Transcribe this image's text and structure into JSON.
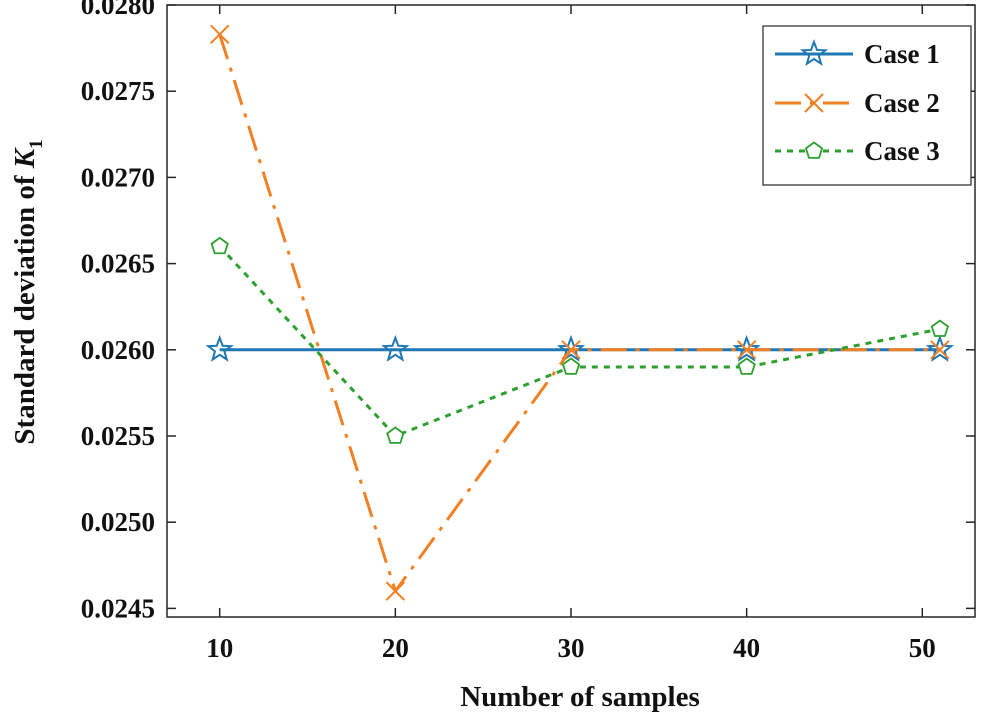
{
  "chart_data": {
    "type": "line",
    "title": "",
    "xlabel": "Number of samples",
    "ylabel_prefix": "Standard deviation of ",
    "ylabel_var": "K",
    "ylabel_sub": "1",
    "xlim": [
      7,
      53
    ],
    "ylim": [
      0.02445,
      0.028
    ],
    "x_ticks": [
      10,
      20,
      30,
      40,
      50
    ],
    "x_tick_labels": [
      "10",
      "20",
      "30",
      "40",
      "50"
    ],
    "y_ticks": [
      0.0245,
      0.025,
      0.0255,
      0.026,
      0.0265,
      0.027,
      0.0275,
      0.028
    ],
    "y_tick_labels": [
      "0.0245",
      "0.0250",
      "0.0255",
      "0.0260",
      "0.0265",
      "0.0270",
      "0.0275",
      "0.0280"
    ],
    "grid": false,
    "legend_position": "top-right",
    "series": [
      {
        "name": "Case 1",
        "x": [
          10,
          20,
          30,
          40,
          51
        ],
        "values": [
          0.026,
          0.026,
          0.026,
          0.026,
          0.026
        ],
        "color": "#1f77b4",
        "line_style": "solid",
        "marker": "star"
      },
      {
        "name": "Case 2",
        "x": [
          10,
          20,
          30,
          40,
          51
        ],
        "values": [
          0.02783,
          0.0246,
          0.026,
          0.026,
          0.026
        ],
        "color": "#f28022",
        "line_style": "dash-dot",
        "marker": "x"
      },
      {
        "name": "Case 3",
        "x": [
          10,
          20,
          30,
          40,
          51
        ],
        "values": [
          0.0266,
          0.0255,
          0.0259,
          0.0259,
          0.02612
        ],
        "color": "#2ca02c",
        "line_style": "dotted",
        "marker": "pentagon"
      }
    ]
  }
}
